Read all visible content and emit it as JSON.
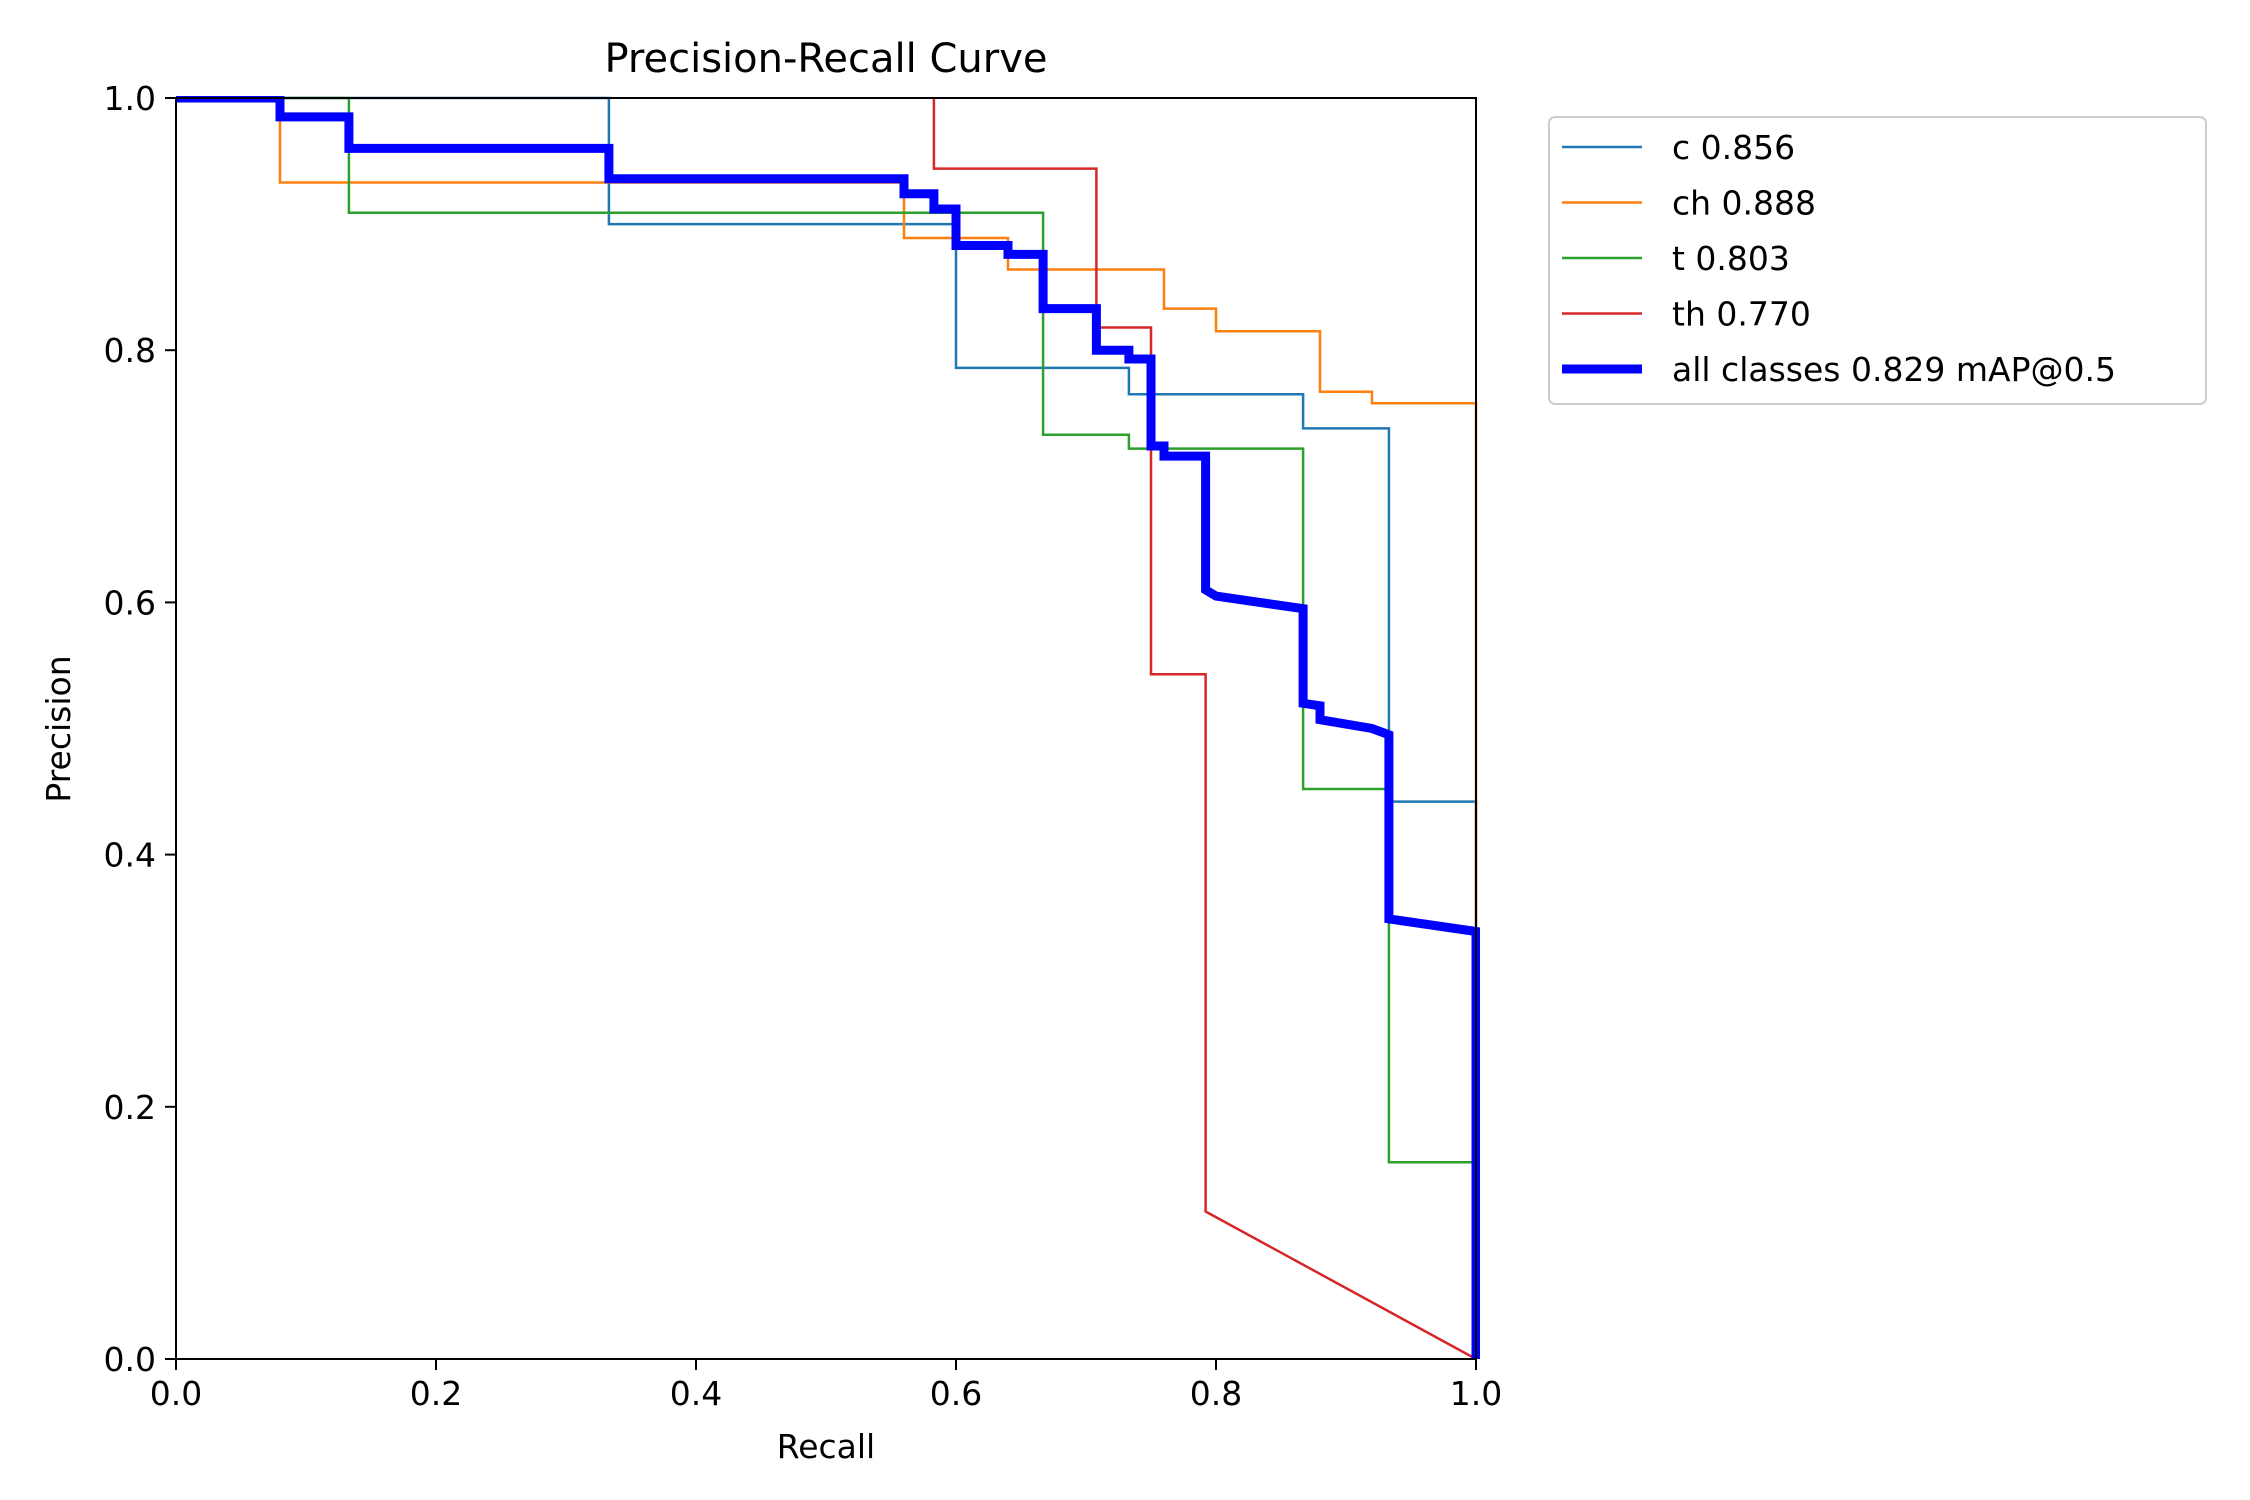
{
  "chart_data": {
    "type": "line",
    "title": "Precision-Recall Curve",
    "xlabel": "Recall",
    "ylabel": "Precision",
    "xlim": [
      0.0,
      1.0
    ],
    "ylim": [
      0.0,
      1.0
    ],
    "xticks": [
      "0.0",
      "0.2",
      "0.4",
      "0.6",
      "0.8",
      "1.0"
    ],
    "yticks": [
      "0.0",
      "0.2",
      "0.4",
      "0.6",
      "0.8",
      "1.0"
    ],
    "grid": false,
    "legend_position": "outside-top-right",
    "series": [
      {
        "name": "c 0.856",
        "color": "#1f77b4",
        "x": [
          0,
          0.333,
          0.333,
          0.6,
          0.6,
          0.733,
          0.733,
          0.867,
          0.867,
          0.933,
          0.933,
          1.0,
          1.0
        ],
        "y": [
          1.0,
          1.0,
          0.9,
          0.9,
          0.786,
          0.786,
          0.765,
          0.765,
          0.738,
          0.738,
          0.442,
          0.442,
          0.0
        ]
      },
      {
        "name": "ch 0.888",
        "color": "#ff7f0e",
        "x": [
          0,
          0.08,
          0.08,
          0.56,
          0.56,
          0.64,
          0.64,
          0.76,
          0.76,
          0.8,
          0.8,
          0.88,
          0.88,
          0.92,
          0.92,
          1.0,
          1.0
        ],
        "y": [
          1.0,
          1.0,
          0.933,
          0.933,
          0.889,
          0.889,
          0.864,
          0.864,
          0.833,
          0.833,
          0.815,
          0.815,
          0.767,
          0.767,
          0.758,
          0.758,
          0.0
        ]
      },
      {
        "name": "t 0.803",
        "color": "#2ca02c",
        "x": [
          0,
          0.133,
          0.133,
          0.667,
          0.667,
          0.733,
          0.733,
          0.867,
          0.867,
          0.933,
          0.933,
          1.0,
          1.0
        ],
        "y": [
          1.0,
          1.0,
          0.909,
          0.909,
          0.733,
          0.733,
          0.722,
          0.722,
          0.452,
          0.452,
          0.156,
          0.156,
          0.0
        ]
      },
      {
        "name": "th 0.770",
        "color": "#d62728",
        "x": [
          0.583,
          0.583,
          0.708,
          0.708,
          0.75,
          0.75,
          0.792,
          0.792,
          1.0
        ],
        "y": [
          1.0,
          0.944,
          0.944,
          0.818,
          0.818,
          0.543,
          0.543,
          0.117,
          0.0
        ]
      },
      {
        "name": "all classes 0.829 mAP@0.5",
        "color": "#0000ff",
        "x": [
          0,
          0.08,
          0.08,
          0.133,
          0.133,
          0.333,
          0.333,
          0.56,
          0.56,
          0.583,
          0.583,
          0.6,
          0.6,
          0.64,
          0.64,
          0.667,
          0.667,
          0.708,
          0.708,
          0.733,
          0.733,
          0.75,
          0.75,
          0.76,
          0.76,
          0.792,
          0.792,
          0.8,
          0.867,
          0.867,
          0.88,
          0.88,
          0.92,
          0.933,
          0.933,
          1.0,
          1.0
        ],
        "y": [
          1.0,
          1.0,
          0.985,
          0.985,
          0.96,
          0.96,
          0.936,
          0.936,
          0.924,
          0.924,
          0.912,
          0.912,
          0.883,
          0.883,
          0.876,
          0.876,
          0.833,
          0.833,
          0.8,
          0.8,
          0.793,
          0.793,
          0.724,
          0.724,
          0.716,
          0.716,
          0.61,
          0.605,
          0.595,
          0.52,
          0.518,
          0.507,
          0.5,
          0.495,
          0.349,
          0.339,
          0.0
        ]
      }
    ]
  }
}
